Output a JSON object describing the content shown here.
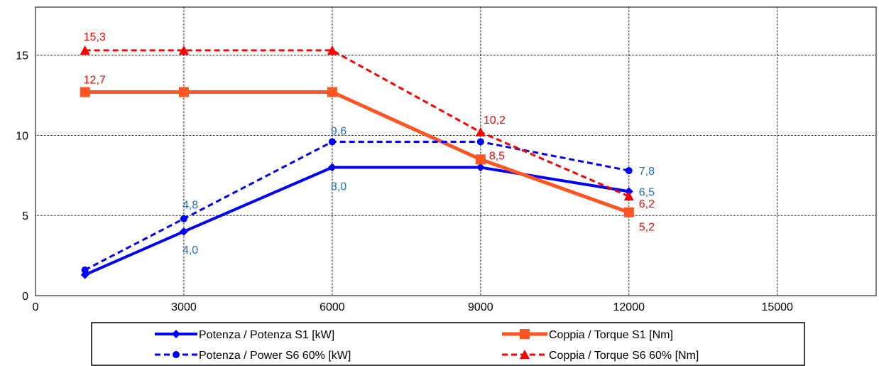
{
  "chart_data": {
    "type": "line",
    "title": "",
    "xlabel": "",
    "ylabel": "",
    "xlim": [
      0,
      17000
    ],
    "ylim": [
      0,
      18
    ],
    "x_ticks": [
      0,
      3000,
      6000,
      9000,
      12000,
      15000
    ],
    "y_ticks": [
      0,
      5,
      10,
      15
    ],
    "x_tick_labels": [
      "0",
      "3000",
      "6000",
      "9000",
      "12000",
      "15000"
    ],
    "y_tick_labels": [
      "0",
      "5",
      "10",
      "15"
    ],
    "grid": true,
    "legend_position": "bottom",
    "series": [
      {
        "name": "Potenza / Potenza S1 [kW]",
        "color": "#0000FF",
        "line_style": "solid",
        "marker": "diamond",
        "x": [
          1000,
          3000,
          6000,
          9000,
          12000
        ],
        "y": [
          1.3,
          4.0,
          8.0,
          8.0,
          6.5
        ],
        "labels": [
          "",
          "4,0",
          "8,0",
          "",
          "6,5"
        ],
        "label_color": "#1F6FBF"
      },
      {
        "name": "Coppia / Torque S1 [Nm]",
        "color": "#FF5522",
        "line_style": "solid",
        "marker": "square",
        "x": [
          1000,
          3000,
          6000,
          9000,
          12000
        ],
        "y": [
          12.7,
          12.7,
          12.7,
          8.5,
          5.2
        ],
        "labels": [
          "12,7",
          "",
          "",
          "8,5",
          "5,2"
        ],
        "label_color": "#FF0000"
      },
      {
        "name": "Potenza / Power S6 60% [kW]",
        "color": "#0000FF",
        "line_style": "dashed",
        "marker": "circle",
        "x": [
          1000,
          3000,
          6000,
          9000,
          12000
        ],
        "y": [
          1.6,
          4.8,
          9.6,
          9.6,
          7.8
        ],
        "labels": [
          "",
          "4,8",
          "9,6",
          "",
          "7,8"
        ],
        "label_color": "#1F6FBF"
      },
      {
        "name": "Coppia / Torque S6 60% [Nm]",
        "color": "#FF0000",
        "line_style": "dashed",
        "marker": "triangle",
        "x": [
          1000,
          3000,
          6000,
          9000,
          12000
        ],
        "y": [
          15.3,
          15.3,
          15.3,
          10.2,
          6.2
        ],
        "labels": [
          "15,3",
          "",
          "",
          "10,2",
          "6,2"
        ],
        "label_color": "#FF0000"
      }
    ]
  }
}
